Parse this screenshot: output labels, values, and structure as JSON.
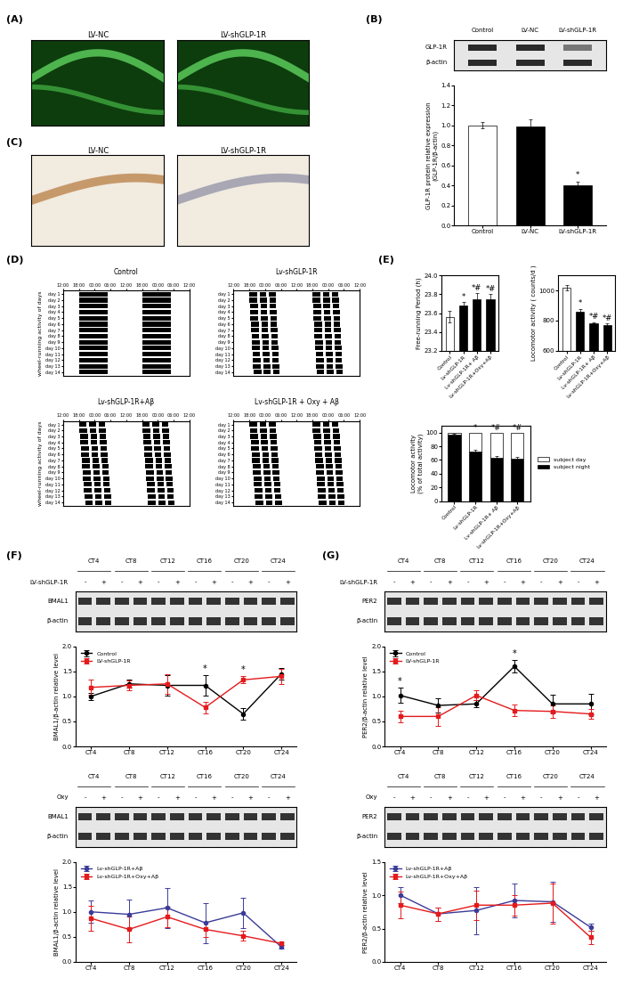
{
  "panel_labels": [
    "(A)",
    "(B)",
    "(C)",
    "(D)",
    "(E)",
    "(F)",
    "(G)"
  ],
  "images": {
    "A": [
      "LV-NC",
      "LV-shGLP-1R"
    ],
    "C": [
      "LV-NC",
      "LV-shGLP-1R"
    ]
  },
  "actograms": {
    "ylabel": "wheel-running activity of days",
    "titles": [
      "Control",
      "Lv-shGLP-1R",
      "Lv-shGLP-1R+Aβ",
      "Lv-shGLP-1R + Oxy + Aβ"
    ],
    "time_labels": [
      "12:00",
      "18:00",
      "00:00",
      "06:00",
      "12:00",
      "18:00",
      "00:00",
      "06:00",
      "12:00"
    ],
    "day_labels": [
      "day 1",
      "day 2",
      "day 3",
      "day 4",
      "day 5",
      "day 6",
      "day 7",
      "day 8",
      "day 9",
      "day 10",
      "day 11",
      "day 12",
      "day 13",
      "day 14"
    ]
  },
  "chart_data": [
    {
      "type": "bar",
      "categories": [
        "Control",
        "LV-NC",
        "LV-shGLP-1R"
      ],
      "values": [
        1.0,
        0.99,
        0.4
      ],
      "errors": [
        0.03,
        0.07,
        0.04
      ],
      "colors": [
        "#ffffff",
        "#000000",
        "#000000"
      ],
      "ylabel": "GLP-1R protein relative expression\n(GLP-1R/β-actin)",
      "ylim": [
        0,
        1.4
      ],
      "yticks": [
        0.0,
        0.2,
        0.4,
        0.6,
        0.8,
        1.0,
        1.2,
        1.4
      ],
      "annotations": [
        {
          "category": "LV-shGLP-1R",
          "text": "*"
        }
      ],
      "blot": {
        "rows": [
          "GLP-1R",
          "β-actin"
        ]
      }
    },
    {
      "type": "bar",
      "categories": [
        "Control",
        "Lv-shGLP-1R",
        "Lv-shGLP-1R+ Aβ",
        "Lv-shGLP-1R+Oxy+Aβ"
      ],
      "values": [
        23.56,
        23.68,
        23.75,
        23.75
      ],
      "errors": [
        0.06,
        0.04,
        0.06,
        0.05
      ],
      "colors": [
        "#ffffff",
        "#000000",
        "#000000",
        "#000000"
      ],
      "ylabel": "Free-running Period (h)",
      "ylim": [
        23.2,
        24.0
      ],
      "yticks": [
        23.2,
        23.4,
        23.6,
        23.8,
        24.0
      ],
      "annotations": [
        {
          "category": "Lv-shGLP-1R",
          "text": "*"
        },
        {
          "category": "Lv-shGLP-1R+ Aβ",
          "text": "*#"
        },
        {
          "category": "Lv-shGLP-1R+Oxy+Aβ",
          "text": "*#"
        }
      ]
    },
    {
      "type": "bar",
      "categories": [
        "Control",
        "Lv-shGLP-1R",
        "Lv-shGLP-1R+ Aβ",
        "Lv-shGLP-1R+Oxy+Aβ"
      ],
      "values": [
        1020,
        860,
        780,
        770
      ],
      "errors": [
        20,
        20,
        10,
        10
      ],
      "colors": [
        "#ffffff",
        "#000000",
        "#000000",
        "#000000"
      ],
      "ylabel": "Locomotor activity ( counts/d )",
      "ylim": [
        600,
        1100
      ],
      "yticks": [
        600,
        800,
        1000
      ],
      "annotations": [
        {
          "category": "Lv-shGLP-1R",
          "text": "*"
        },
        {
          "category": "Lv-shGLP-1R+ Aβ",
          "text": "*#"
        },
        {
          "category": "Lv-shGLP-1R+Oxy+Aβ",
          "text": "*#"
        }
      ]
    },
    {
      "type": "bar",
      "stacked": true,
      "categories": [
        "Control",
        "Lv-shGLP-1R",
        "Lv-shGLP-1R+ Aβ",
        "Lv-shGLP-1R+Oxy+Aβ"
      ],
      "series": [
        {
          "name": "subject night",
          "color": "#000000",
          "values": [
            97,
            72,
            63,
            62
          ],
          "errors": [
            2,
            3,
            3,
            2
          ]
        },
        {
          "name": "subject day",
          "color": "#ffffff",
          "values": [
            3,
            28,
            37,
            38
          ]
        }
      ],
      "ylabel": "Locomotor activity\n(% of total activity)",
      "ylim": [
        0,
        110
      ],
      "yticks": [
        0,
        20,
        40,
        60,
        80,
        100
      ],
      "legend": "right",
      "annotations": [
        {
          "category": "Lv-shGLP-1R",
          "text": "*"
        },
        {
          "category": "Lv-shGLP-1R+ Aβ",
          "text": "*#"
        },
        {
          "category": "Lv-shGLP-1R+Oxy+Aβ",
          "text": "*#"
        }
      ]
    },
    {
      "type": "line",
      "categories": [
        "CT4",
        "CT8",
        "CT12",
        "CT16",
        "CT20",
        "CT24"
      ],
      "series": [
        {
          "name": "Control",
          "color": "#000000",
          "marker": "circle",
          "values": [
            1.0,
            1.25,
            1.22,
            1.22,
            0.65,
            1.45
          ],
          "errors": [
            0.07,
            0.08,
            0.2,
            0.2,
            0.12,
            0.12
          ]
        },
        {
          "name": "LV-shGLP-1R",
          "color": "#e41a1c",
          "marker": "square",
          "values": [
            1.18,
            1.22,
            1.25,
            0.78,
            1.33,
            1.4
          ],
          "errors": [
            0.15,
            0.1,
            0.2,
            0.12,
            0.07,
            0.15
          ]
        }
      ],
      "ylabel": "BMAL1/β-actin relative level",
      "ylim": [
        0,
        2.0
      ],
      "yticks": [
        0.0,
        0.5,
        1.0,
        1.5,
        2.0
      ],
      "legend": "upper left",
      "annotations": [
        {
          "category": "CT16",
          "text": "*"
        },
        {
          "category": "CT20",
          "text": "*"
        }
      ],
      "blot": {
        "condition": "LV-shGLP-1R",
        "signs": [
          "-",
          "+"
        ],
        "rows": [
          "BMAL1",
          "β-actin"
        ]
      }
    },
    {
      "type": "line",
      "categories": [
        "CT4",
        "CT8",
        "CT12",
        "CT16",
        "CT20",
        "CT24"
      ],
      "series": [
        {
          "name": "Lv-shGLP-1R+Aβ",
          "color": "#3b3b9a",
          "marker": "circle",
          "values": [
            1.0,
            0.95,
            1.08,
            0.78,
            0.98,
            0.3
          ],
          "errors": [
            0.22,
            0.3,
            0.4,
            0.4,
            0.3,
            0.03
          ]
        },
        {
          "name": "Lv-shGLP-1R+Oxy+Aβ",
          "color": "#e41a1c",
          "marker": "square",
          "values": [
            0.87,
            0.65,
            0.9,
            0.65,
            0.52,
            0.37
          ],
          "errors": [
            0.25,
            0.25,
            0.2,
            0.15,
            0.1,
            0.03
          ]
        }
      ],
      "ylabel": "BMAL1/β-actin relative level",
      "ylim": [
        0,
        2.0
      ],
      "yticks": [
        0.0,
        0.5,
        1.0,
        1.5,
        2.0
      ],
      "legend": "upper left",
      "blot": {
        "condition": "Oxy",
        "signs": [
          "-",
          "+"
        ],
        "rows": [
          "BMAL1",
          "β-actin"
        ]
      }
    },
    {
      "type": "line",
      "categories": [
        "CT4",
        "CT8",
        "CT12",
        "CT16",
        "CT20",
        "CT24"
      ],
      "series": [
        {
          "name": "Control",
          "color": "#000000",
          "marker": "circle",
          "values": [
            1.02,
            0.82,
            0.85,
            1.6,
            0.85,
            0.85
          ],
          "errors": [
            0.15,
            0.15,
            0.07,
            0.12,
            0.18,
            0.2
          ]
        },
        {
          "name": "LV-shGLP-1R",
          "color": "#e41a1c",
          "marker": "square",
          "values": [
            0.6,
            0.6,
            1.02,
            0.72,
            0.7,
            0.65
          ],
          "errors": [
            0.12,
            0.18,
            0.1,
            0.12,
            0.12,
            0.1
          ]
        }
      ],
      "ylabel": "PER2/β-actin relative level",
      "ylim": [
        0,
        2.0
      ],
      "yticks": [
        0.0,
        0.5,
        1.0,
        1.5,
        2.0
      ],
      "legend": "upper left",
      "annotations": [
        {
          "category": "CT4",
          "text": "*"
        },
        {
          "category": "CT16",
          "text": "*"
        }
      ],
      "blot": {
        "condition": "LV-shGLP-1R",
        "signs": [
          "-",
          "+"
        ],
        "rows": [
          "PER2",
          "β-actin"
        ]
      }
    },
    {
      "type": "line",
      "categories": [
        "CT4",
        "CT8",
        "CT12",
        "CT16",
        "CT20",
        "CT24"
      ],
      "series": [
        {
          "name": "Lv-shGLP-1R+Aβ",
          "color": "#3b3b9a",
          "marker": "circle",
          "values": [
            1.0,
            0.72,
            0.77,
            0.92,
            0.9,
            0.52
          ],
          "errors": [
            0.12,
            0.1,
            0.35,
            0.25,
            0.3,
            0.05
          ]
        },
        {
          "name": "Lv-shGLP-1R+Oxy+Aβ",
          "color": "#e41a1c",
          "marker": "square",
          "values": [
            0.85,
            0.72,
            0.85,
            0.85,
            0.88,
            0.37
          ],
          "errors": [
            0.2,
            0.1,
            0.22,
            0.15,
            0.3,
            0.1
          ]
        }
      ],
      "ylabel": "PER2/β-actin relative level",
      "ylim": [
        0,
        1.5
      ],
      "yticks": [
        0.0,
        0.5,
        1.0,
        1.5
      ],
      "legend": "upper left",
      "blot": {
        "condition": "Oxy",
        "signs": [
          "-",
          "+"
        ],
        "rows": [
          "PER2",
          "β-actin"
        ]
      }
    }
  ]
}
